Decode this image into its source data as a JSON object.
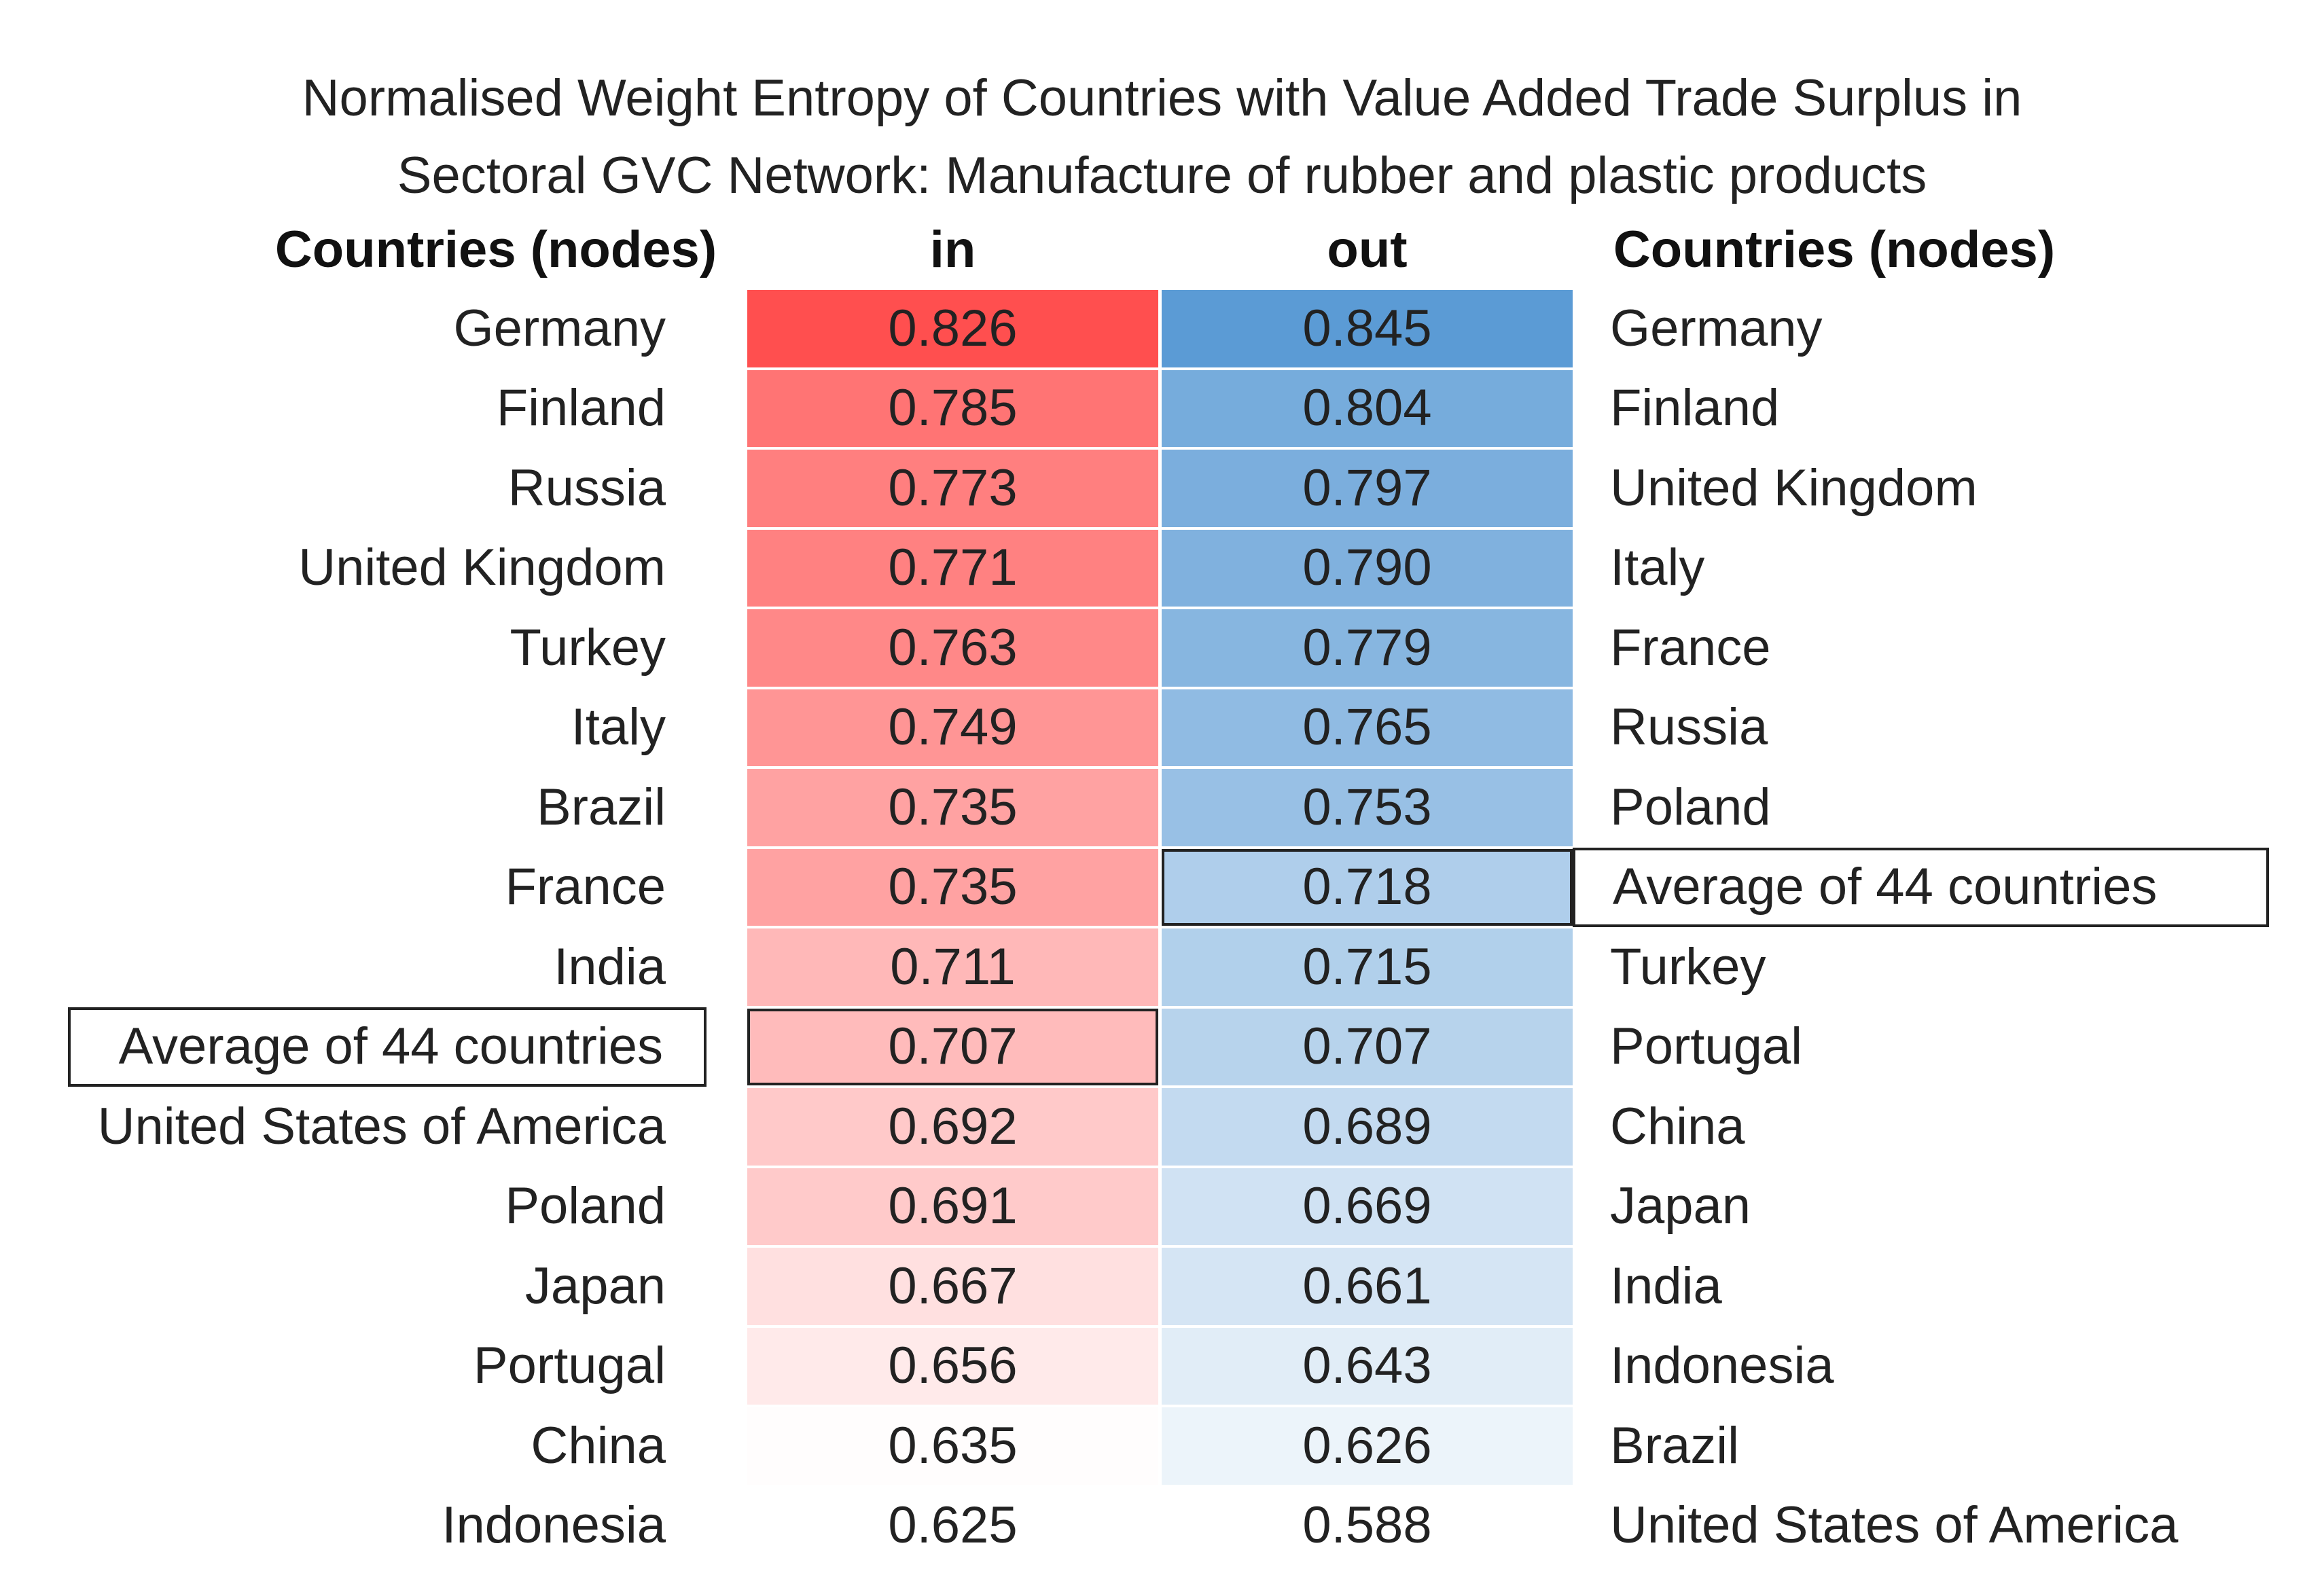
{
  "title_line1": "Normalised Weight Entropy of Countries with Value Added Trade Surplus in",
  "title_line2": "Sectoral GVC Network: Manufacture of rubber and plastic products",
  "chart_data": {
    "type": "table",
    "headers": {
      "left_countries": "Countries (nodes)",
      "in": "in",
      "out": "out",
      "right_countries": "Countries (nodes)"
    },
    "in_ranking": [
      {
        "country": "Germany",
        "value": "0.826"
      },
      {
        "country": "Finland",
        "value": "0.785"
      },
      {
        "country": "Russia",
        "value": "0.773"
      },
      {
        "country": "United Kingdom",
        "value": "0.771"
      },
      {
        "country": "Turkey",
        "value": "0.763"
      },
      {
        "country": "Italy",
        "value": "0.749"
      },
      {
        "country": "Brazil",
        "value": "0.735"
      },
      {
        "country": "France",
        "value": "0.735"
      },
      {
        "country": "India",
        "value": "0.711"
      },
      {
        "country": "Average of 44 countries",
        "value": "0.707"
      },
      {
        "country": "United States of America",
        "value": "0.692"
      },
      {
        "country": "Poland",
        "value": "0.691"
      },
      {
        "country": "Japan",
        "value": "0.667"
      },
      {
        "country": "Portugal",
        "value": "0.656"
      },
      {
        "country": "China",
        "value": "0.635"
      },
      {
        "country": "Indonesia",
        "value": "0.625"
      }
    ],
    "out_ranking": [
      {
        "country": "Germany",
        "value": "0.845"
      },
      {
        "country": "Finland",
        "value": "0.804"
      },
      {
        "country": "United Kingdom",
        "value": "0.797"
      },
      {
        "country": "Italy",
        "value": "0.790"
      },
      {
        "country": "France",
        "value": "0.779"
      },
      {
        "country": "Russia",
        "value": "0.765"
      },
      {
        "country": "Poland",
        "value": "0.753"
      },
      {
        "country": "Average of 44 countries",
        "value": "0.718"
      },
      {
        "country": "Turkey",
        "value": "0.715"
      },
      {
        "country": "Portugal",
        "value": "0.707"
      },
      {
        "country": "China",
        "value": "0.689"
      },
      {
        "country": "Japan",
        "value": "0.669"
      },
      {
        "country": "India",
        "value": "0.661"
      },
      {
        "country": "Indonesia",
        "value": "0.643"
      },
      {
        "country": "Brazil",
        "value": "0.626"
      },
      {
        "country": "United States of America",
        "value": "0.588"
      }
    ],
    "highlighted_label": "Average of 44 countries",
    "colors": {
      "in_high": "#ff4f4f",
      "in_low": "#ffffff",
      "out_high": "#5b9bd5",
      "out_low": "#ffffff"
    }
  }
}
